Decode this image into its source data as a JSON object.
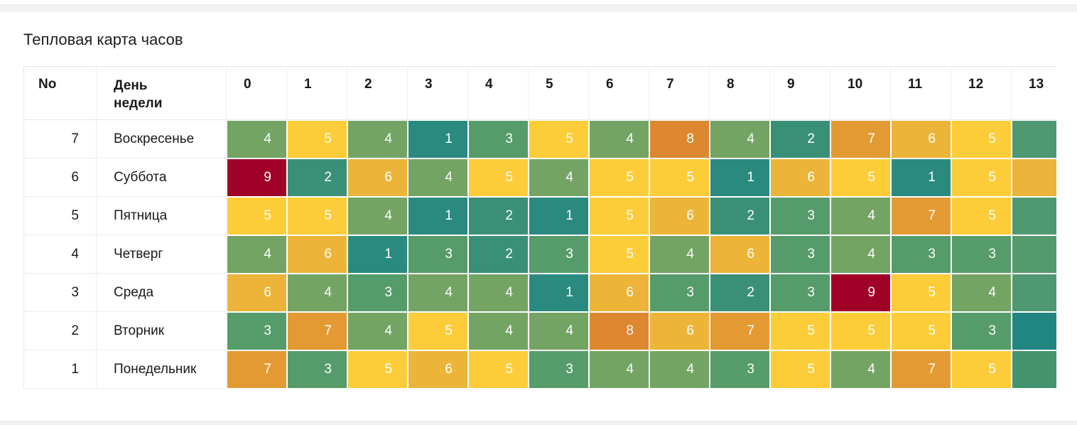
{
  "page": {
    "title": "Тепловая карта часов"
  },
  "table": {
    "col_no_header": "No",
    "col_day_header": "День недели",
    "hour_headers": [
      "0",
      "1",
      "2",
      "3",
      "4",
      "5",
      "6",
      "7",
      "8",
      "9",
      "10",
      "11",
      "12",
      "13"
    ],
    "rows": [
      {
        "no": "7",
        "day": "Воскресенье",
        "values": [
          4,
          5,
          4,
          1,
          3,
          5,
          4,
          8,
          4,
          2,
          7,
          6,
          5,
          null
        ],
        "tail_color": "#4f9871"
      },
      {
        "no": "6",
        "day": "Суббота",
        "values": [
          9,
          2,
          6,
          4,
          5,
          4,
          5,
          5,
          1,
          6,
          5,
          1,
          5,
          null
        ],
        "tail_color": "#ecb43a"
      },
      {
        "no": "5",
        "day": "Пятница",
        "values": [
          5,
          5,
          4,
          1,
          2,
          1,
          5,
          6,
          2,
          3,
          4,
          7,
          5,
          null
        ],
        "tail_color": "#4f9871"
      },
      {
        "no": "4",
        "day": "Четверг",
        "values": [
          4,
          6,
          1,
          3,
          2,
          3,
          5,
          4,
          6,
          3,
          4,
          3,
          3,
          null
        ],
        "tail_color": "#549a6c"
      },
      {
        "no": "3",
        "day": "Среда",
        "values": [
          6,
          4,
          3,
          4,
          4,
          1,
          6,
          3,
          2,
          3,
          9,
          5,
          4,
          null
        ],
        "tail_color": "#4f9871"
      },
      {
        "no": "2",
        "day": "Вторник",
        "values": [
          3,
          7,
          4,
          5,
          4,
          4,
          8,
          6,
          7,
          5,
          5,
          5,
          3,
          null
        ],
        "tail_color": "#218581"
      },
      {
        "no": "1",
        "day": "Понедельник",
        "values": [
          7,
          3,
          5,
          6,
          5,
          3,
          4,
          4,
          3,
          5,
          4,
          7,
          5,
          null
        ],
        "tail_color": "#45936f"
      }
    ]
  },
  "heat_palette": {
    "1": "#2a8a80",
    "2": "#3a9077",
    "3": "#569c6a",
    "4": "#73a464",
    "5": "#fdcc39",
    "6": "#ecb438",
    "7": "#e39a33",
    "8": "#dd8730",
    "9": "#a00227"
  },
  "chart_data": {
    "type": "heatmap",
    "title": "Тепловая карта часов",
    "x": [
      "0",
      "1",
      "2",
      "3",
      "4",
      "5",
      "6",
      "7",
      "8",
      "9",
      "10",
      "11",
      "12",
      "13"
    ],
    "y": [
      "Воскресенье",
      "Суббота",
      "Пятница",
      "Четверг",
      "Среда",
      "Вторник",
      "Понедельник"
    ],
    "day_numbers": [
      7,
      6,
      5,
      4,
      3,
      2,
      1
    ],
    "values": [
      [
        4,
        5,
        4,
        1,
        3,
        5,
        4,
        8,
        4,
        2,
        7,
        6,
        5,
        null
      ],
      [
        9,
        2,
        6,
        4,
        5,
        4,
        5,
        5,
        1,
        6,
        5,
        1,
        5,
        null
      ],
      [
        5,
        5,
        4,
        1,
        2,
        1,
        5,
        6,
        2,
        3,
        4,
        7,
        5,
        null
      ],
      [
        4,
        6,
        1,
        3,
        2,
        3,
        5,
        4,
        6,
        3,
        4,
        3,
        3,
        null
      ],
      [
        6,
        4,
        3,
        4,
        4,
        1,
        6,
        3,
        2,
        3,
        9,
        5,
        4,
        null
      ],
      [
        3,
        7,
        4,
        5,
        4,
        4,
        8,
        6,
        7,
        5,
        5,
        5,
        3,
        null
      ],
      [
        7,
        3,
        5,
        6,
        5,
        3,
        4,
        4,
        3,
        5,
        4,
        7,
        5,
        null
      ]
    ],
    "value_range": [
      1,
      9
    ],
    "color_scale": {
      "low": "#2a8a80",
      "mid": "#fdcc39",
      "high": "#a00227"
    },
    "note_last_column_clipped": true
  }
}
